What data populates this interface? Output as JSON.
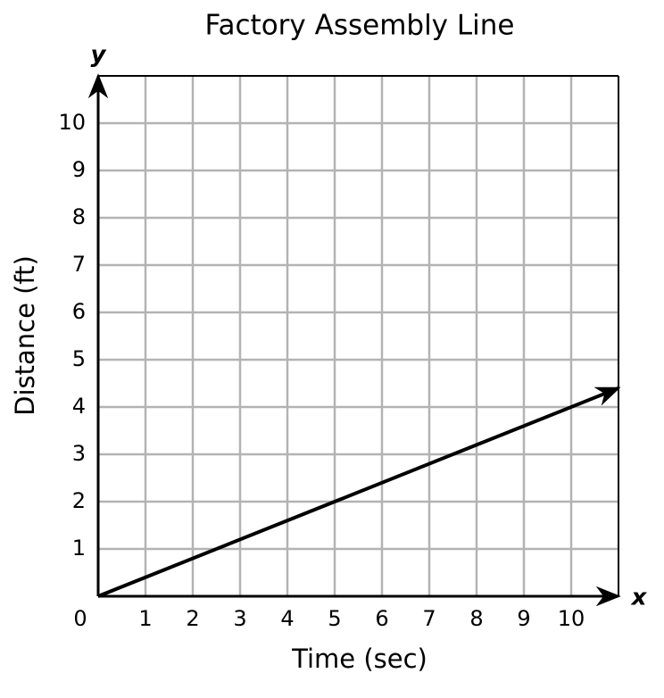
{
  "chart_data": {
    "type": "line",
    "title": "Factory Assembly Line",
    "x_label": "Time (sec)",
    "y_label": "Distance (ft)",
    "x_axis_symbol": "x",
    "y_axis_symbol": "y",
    "x": [
      0,
      11
    ],
    "values": [
      0,
      4.4
    ],
    "color": "#000000",
    "xlim": [
      0,
      11
    ],
    "ylim": [
      0,
      11
    ],
    "xticks": [
      0,
      1,
      2,
      3,
      4,
      5,
      6,
      7,
      8,
      9,
      10
    ],
    "yticks": [
      1,
      2,
      3,
      4,
      5,
      6,
      7,
      8,
      9,
      10
    ],
    "grid": true
  }
}
